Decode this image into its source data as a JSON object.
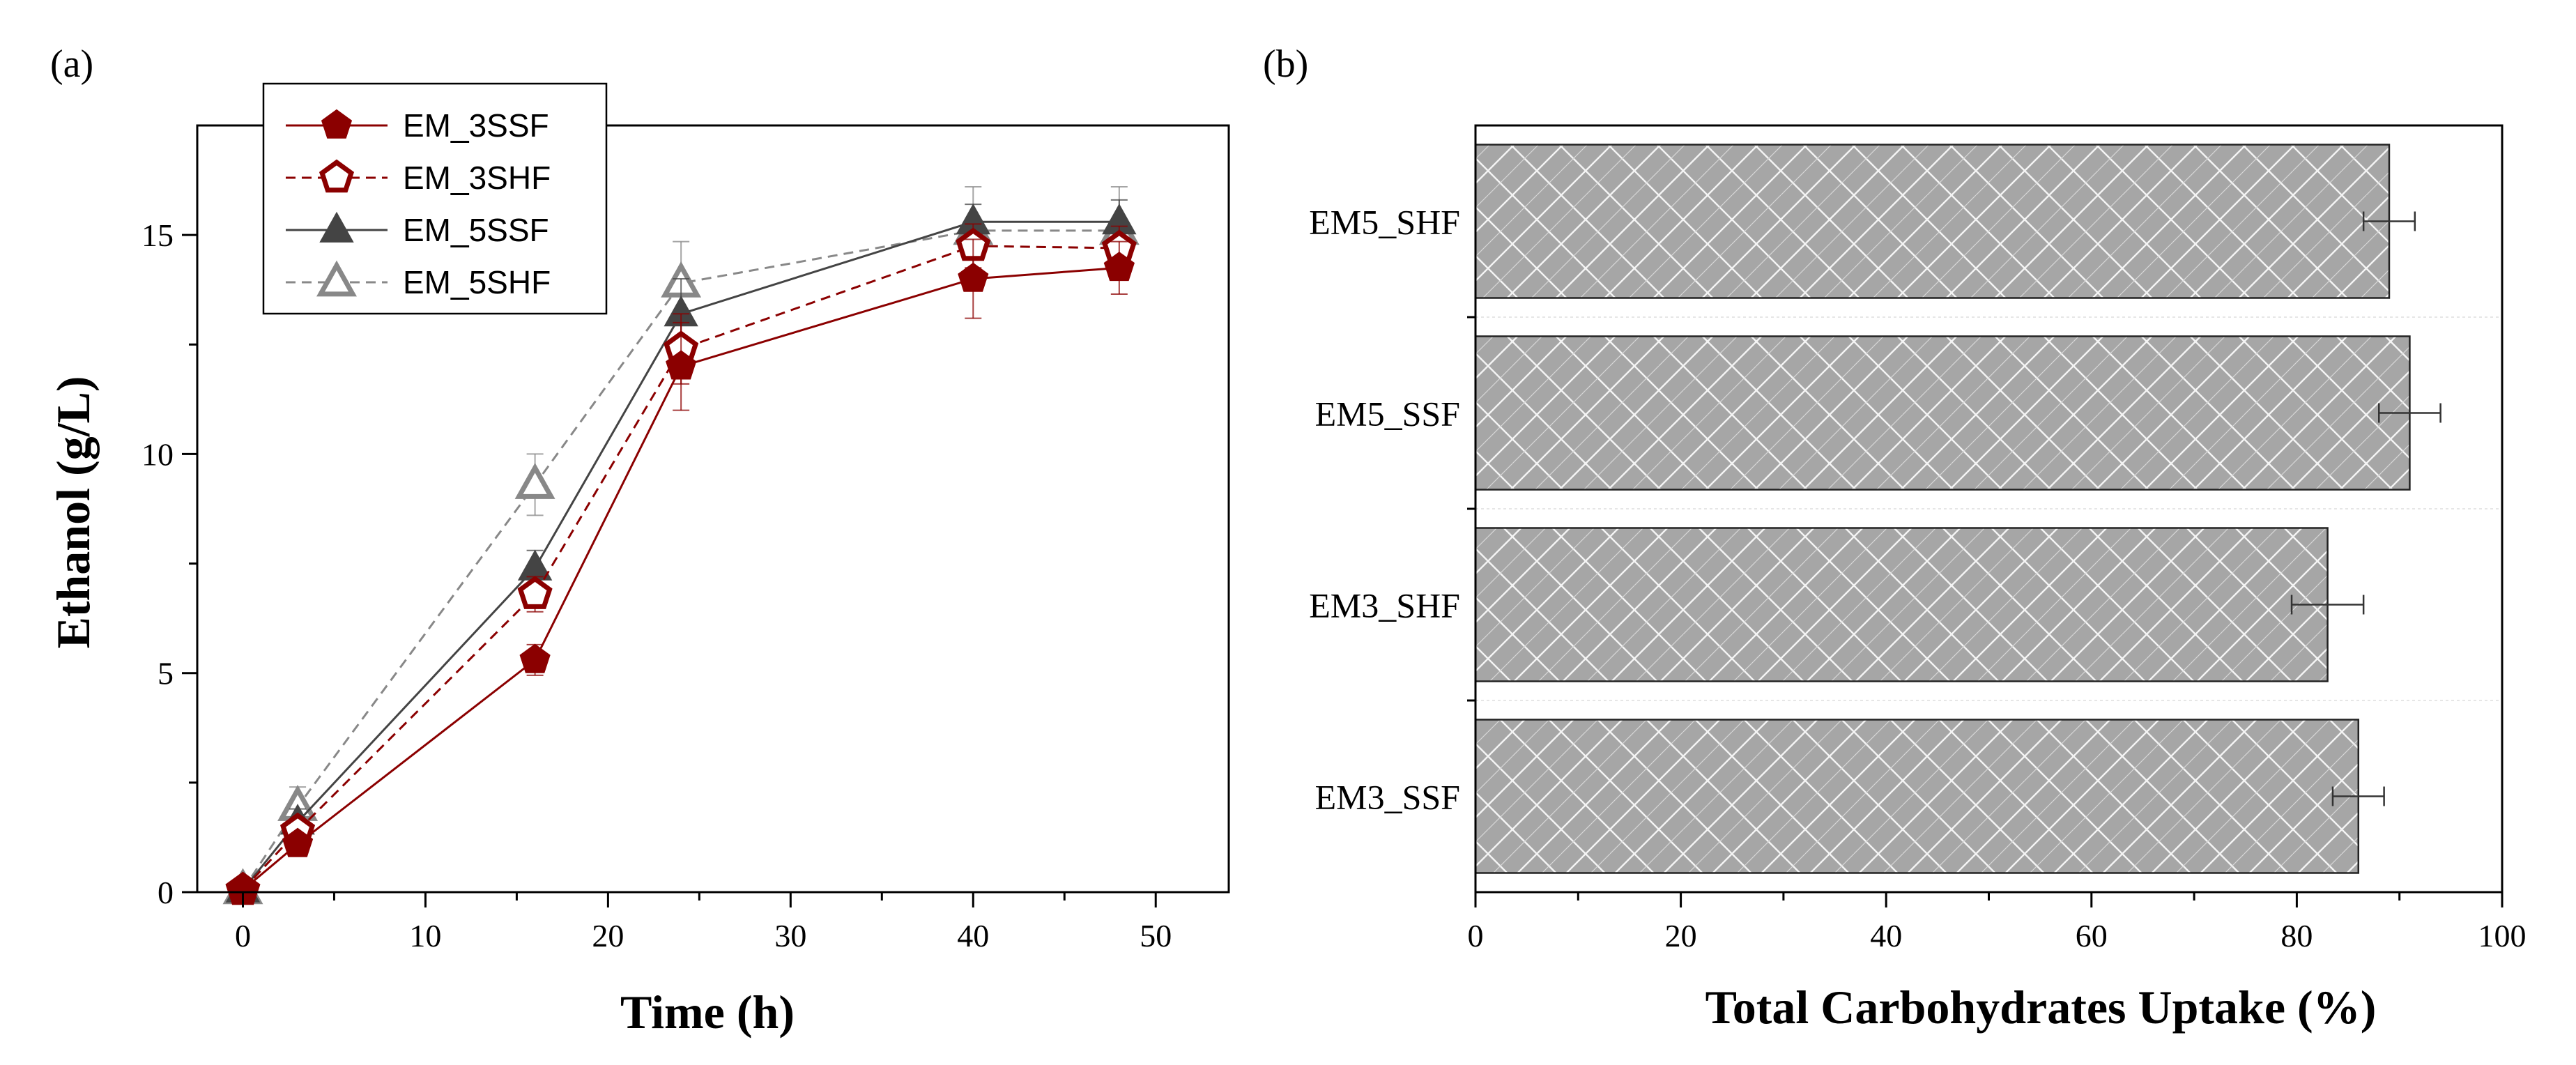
{
  "panels": {
    "a": "(a)",
    "b": "(b)"
  },
  "chart_data": [
    {
      "type": "line",
      "panel": "(a)",
      "xlabel": "Time (h)",
      "ylabel": "Ethanol (g/L)",
      "xlim": [
        -2.5,
        54
      ],
      "ylim": [
        0,
        17.5
      ],
      "xticks": [
        0,
        10,
        20,
        30,
        40,
        50
      ],
      "yticks": [
        0,
        5,
        10,
        15
      ],
      "legend_position": "top-left",
      "x": [
        0,
        3,
        16,
        24,
        40,
        48
      ],
      "series": [
        {
          "name": "EM_3SSF",
          "color": "#8b0000",
          "marker": "pentagon",
          "filled": true,
          "dashed": false,
          "values": [
            0.05,
            1.1,
            5.3,
            12.0,
            14.0,
            14.25
          ],
          "errors": [
            0.05,
            0.15,
            0.35,
            1.0,
            0.9,
            0.6
          ]
        },
        {
          "name": "EM_3SHF",
          "color": "#8b0000",
          "marker": "pentagon",
          "filled": false,
          "dashed": true,
          "values": [
            0.05,
            1.4,
            6.8,
            12.4,
            14.75,
            14.7
          ],
          "errors": [
            0.05,
            0.2,
            0.4,
            0.8,
            0.5,
            0.5
          ]
        },
        {
          "name": "EM_5SSF",
          "color": "#444444",
          "marker": "triangle",
          "filled": true,
          "dashed": false,
          "values": [
            0.05,
            1.6,
            7.4,
            13.2,
            15.3,
            15.3
          ],
          "errors": [
            0.05,
            0.3,
            0.4,
            0.8,
            0.4,
            0.5
          ]
        },
        {
          "name": "EM_5SHF",
          "color": "#888888",
          "marker": "triangle",
          "filled": false,
          "dashed": true,
          "values": [
            0.05,
            1.95,
            9.3,
            13.9,
            15.1,
            15.1
          ],
          "errors": [
            0.05,
            0.45,
            0.7,
            0.95,
            1.0,
            1.0
          ]
        }
      ]
    },
    {
      "type": "bar",
      "orientation": "horizontal",
      "panel": "(b)",
      "xlabel": "Total Carbohydrates Uptake (%)",
      "ylabel": "",
      "xlim": [
        0,
        100
      ],
      "xticks": [
        0,
        20,
        40,
        60,
        80,
        100
      ],
      "categories": [
        "EM5_SHF",
        "EM5_SSF",
        "EM3_SHF",
        "EM3_SSF"
      ],
      "values": [
        89,
        91,
        83,
        86
      ],
      "errors": [
        2.5,
        3.0,
        3.5,
        2.5
      ],
      "bar_color": "#a9a9a9"
    }
  ]
}
